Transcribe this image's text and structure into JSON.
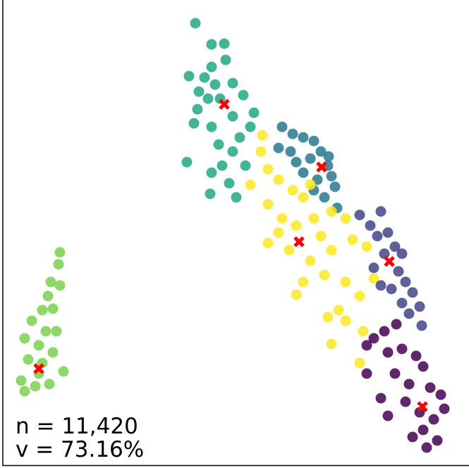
{
  "chart_data": {
    "type": "scatter",
    "xlim": [
      4,
      665
    ],
    "ylim": [
      0,
      660
    ],
    "annotations": [
      "n = 11,420",
      "v = 73.16%"
    ],
    "series": [
      {
        "color": "#22a884",
        "x": [
          277,
          300,
          318,
          320,
          300,
          290,
          268,
          282,
          305,
          330,
          345,
          360,
          355,
          340,
          300,
          275,
          280,
          310,
          330,
          315,
          348,
          300,
          325,
          335,
          298,
          265,
          312,
          295,
          330
        ],
        "y": [
          627,
          597,
          598,
          575,
          565,
          550,
          552,
          530,
          540,
          542,
          525,
          500,
          480,
          465,
          480,
          485,
          505,
          455,
          445,
          425,
          425,
          415,
          400,
          380,
          385,
          430,
          520,
          520,
          495
        ]
      },
      {
        "color": "#2a788e",
        "x": [
          400,
          415,
          430,
          445,
          455,
          440,
          420,
          465,
          470,
          450,
          475,
          460,
          445,
          430,
          478,
          395,
          412,
          466
        ],
        "y": [
          480,
          470,
          465,
          460,
          445,
          435,
          430,
          425,
          410,
          405,
          395,
          380,
          390,
          415,
          365,
          450,
          445,
          438
        ]
      },
      {
        "color": "#fde725",
        "x": [
          372,
          370,
          380,
          355,
          395,
          415,
          440,
          430,
          380,
          400,
          420,
          445,
          470,
          490,
          380,
          410,
          440,
          470,
          500,
          520,
          460,
          430,
          420,
          490,
          510,
          480,
          465,
          490,
          515,
          510,
          470,
          530,
          395,
          455
        ],
        "y": [
          468,
          445,
          420,
          398,
          405,
          390,
          398,
          380,
          370,
          350,
          340,
          350,
          360,
          350,
          315,
          305,
          290,
          305,
          320,
          310,
          270,
          260,
          242,
          260,
          240,
          220,
          210,
          205,
          190,
          145,
          172,
          265,
          330,
          325
        ]
      },
      {
        "color": "#414487",
        "x": [
          510,
          525,
          540,
          550,
          560,
          545,
          530,
          565,
          575,
          555,
          585,
          570,
          595,
          580,
          598,
          540,
          535,
          570
        ],
        "y": [
          355,
          340,
          360,
          330,
          310,
          300,
          280,
          275,
          260,
          250,
          245,
          230,
          225,
          215,
          198,
          255,
          325,
          300
        ]
      },
      {
        "color": "#440154",
        "x": [
          562,
          545,
          530,
          520,
          550,
          570,
          590,
          600,
          560,
          580,
          610,
          625,
          575,
          595,
          615,
          630,
          600,
          620,
          540,
          550,
          585,
          605,
          520
        ],
        "y": [
          200,
          190,
          180,
          170,
          160,
          165,
          155,
          140,
          130,
          115,
          110,
          100,
          90,
          75,
          65,
          80,
          50,
          35,
          95,
          70,
          40,
          25,
          130
        ]
      },
      {
        "color": "#7ad151",
        "x": [
          85,
          83,
          72,
          85,
          68,
          60,
          75,
          45,
          65,
          80,
          35,
          55,
          75,
          40,
          60,
          90,
          30,
          50,
          70,
          35,
          55
        ],
        "y": [
          302,
          285,
          260,
          255,
          240,
          220,
          222,
          205,
          190,
          190,
          180,
          170,
          160,
          150,
          145,
          133,
          120,
          112,
          115,
          105,
          130
        ]
      }
    ],
    "centroids": {
      "color": "#ff0000",
      "x": [
        318,
        456,
        424,
        552,
        599,
        55
      ],
      "y": [
        512,
        423,
        317,
        289,
        83,
        137
      ]
    }
  }
}
